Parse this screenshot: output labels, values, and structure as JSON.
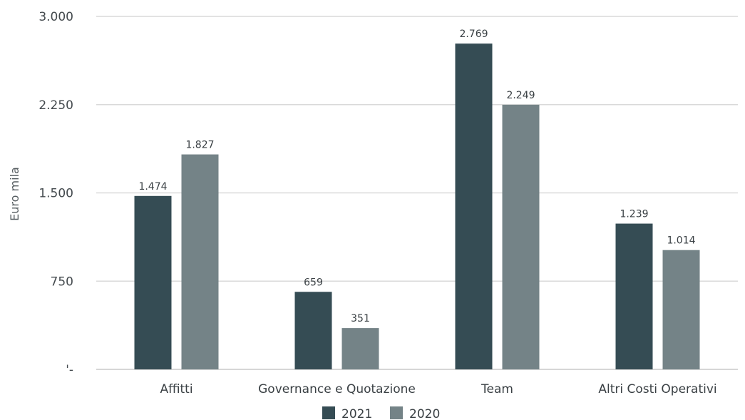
{
  "chart_data": {
    "type": "bar",
    "categories": [
      "Affitti",
      "Governance e Quotazione",
      "Team",
      "Altri Costi Operativi"
    ],
    "series": [
      {
        "name": "2021",
        "values": [
          1474,
          659,
          2769,
          1239
        ],
        "labels": [
          "1.474",
          "659",
          "2.769",
          "1.239"
        ],
        "color": "#354c54"
      },
      {
        "name": "2020",
        "values": [
          1827,
          351,
          2249,
          1014
        ],
        "labels": [
          "1.827",
          "351",
          "2.249",
          "1.014"
        ],
        "color": "#748387"
      }
    ],
    "ylabel": "Euro mila",
    "ylim": [
      0,
      3000
    ],
    "yticks": [
      0,
      750,
      1500,
      2250,
      3000
    ],
    "ytick_labels": [
      "'-",
      "750",
      "1.500",
      "2.250",
      "3.000"
    ],
    "grid": true,
    "legend": "bottom"
  }
}
